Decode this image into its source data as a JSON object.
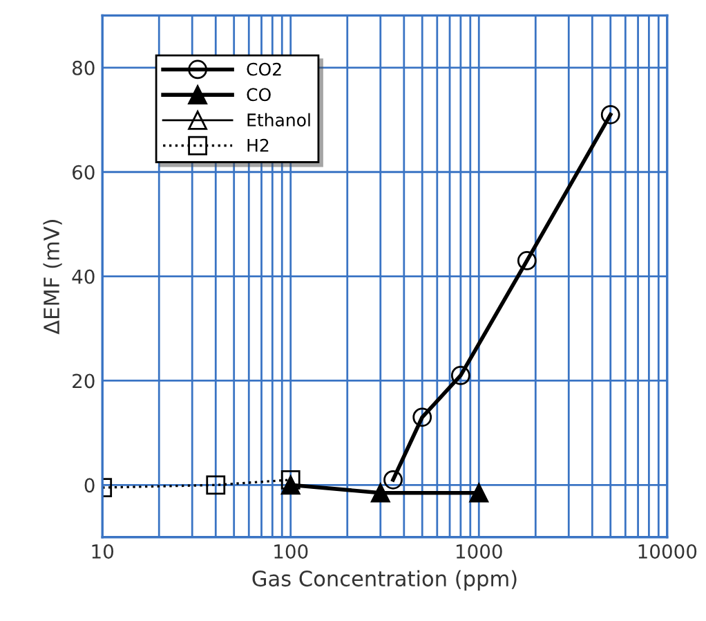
{
  "chart_data": {
    "type": "line",
    "xlabel": "Gas Concentration (ppm)",
    "ylabel": "ΔEMF (mV)",
    "log": "x",
    "xlim": [
      10,
      10000
    ],
    "ylim": [
      -10,
      90
    ],
    "xticks": [
      10,
      {
        "value": 20,
        "label": null
      },
      {
        "value": 30,
        "label": null
      },
      {
        "value": 40,
        "label": null
      },
      {
        "value": 50,
        "label": null
      },
      {
        "value": 60,
        "label": null
      },
      {
        "value": 70,
        "label": null
      },
      {
        "value": 80,
        "label": null
      },
      {
        "value": 90,
        "label": null
      },
      100,
      {
        "value": 200,
        "label": null
      },
      {
        "value": 300,
        "label": null
      },
      {
        "value": 400,
        "label": null
      },
      {
        "value": 500,
        "label": null
      },
      {
        "value": 600,
        "label": null
      },
      {
        "value": 700,
        "label": null
      },
      {
        "value": 800,
        "label": null
      },
      {
        "value": 900,
        "label": null
      },
      1000,
      {
        "value": 2000,
        "label": null
      },
      {
        "value": 3000,
        "label": null
      },
      {
        "value": 4000,
        "label": null
      },
      {
        "value": 5000,
        "label": null
      },
      {
        "value": 6000,
        "label": null
      },
      {
        "value": 7000,
        "label": null
      },
      {
        "value": 8000,
        "label": null
      },
      {
        "value": 9000,
        "label": null
      },
      10000
    ],
    "yticks": [
      0,
      20,
      40,
      60,
      80
    ],
    "grid": true,
    "legend": "top left",
    "series": [
      {
        "name": "CO2",
        "color": "#000000",
        "marker": "circle",
        "line_style": "solid",
        "x": [
          350,
          500,
          800,
          1800,
          5000
        ],
        "values": [
          1,
          13,
          21,
          43,
          71
        ]
      },
      {
        "name": "CO",
        "color": "#000000",
        "marker": "triangle",
        "line_style": "solid",
        "x": [
          100,
          300,
          1000
        ],
        "values": [
          0,
          -1.5,
          -1.5
        ]
      },
      {
        "name": "Ethanol",
        "color": "#000000",
        "marker": "triangle",
        "line_style": "solid"
      },
      {
        "name": "H2",
        "color": "#000000",
        "marker": "square",
        "line_style": "dotted",
        "x": [
          10,
          40,
          100
        ],
        "values": [
          -0.5,
          0,
          1
        ]
      }
    ]
  }
}
